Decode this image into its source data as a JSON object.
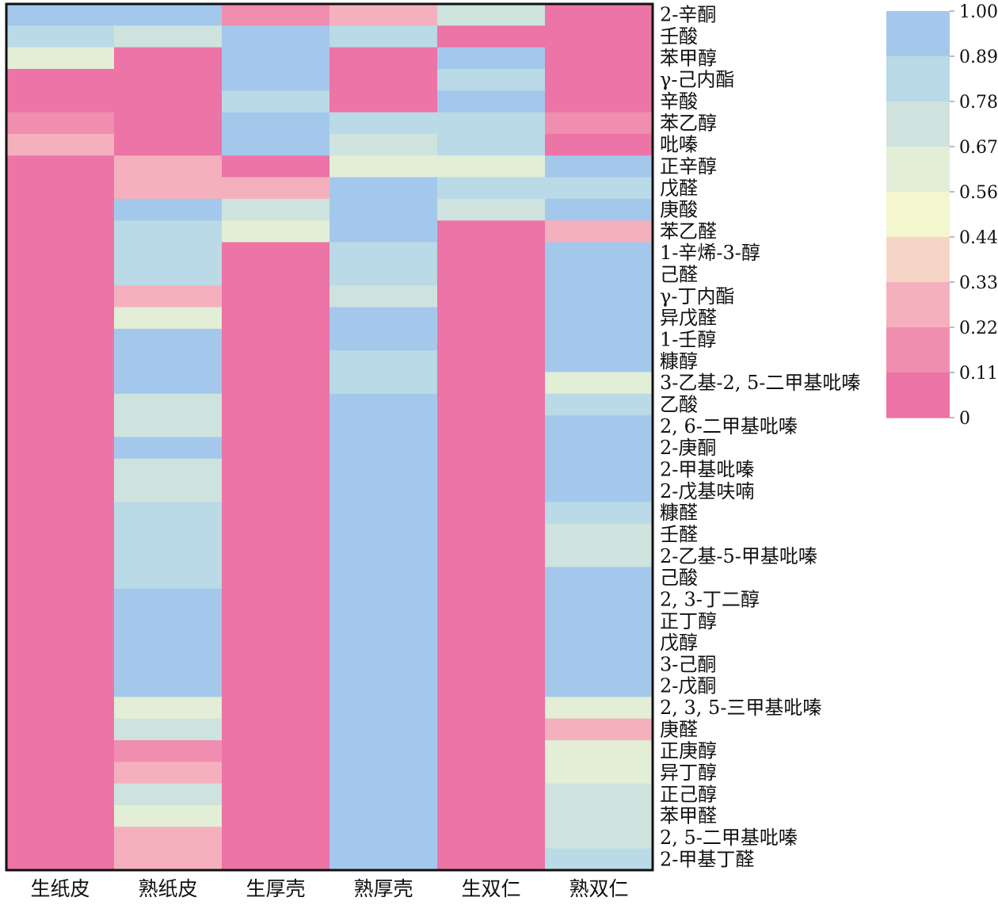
{
  "chart_data": {
    "type": "heatmap",
    "columns": [
      "生纸皮",
      "熟纸皮",
      "生厚壳",
      "熟厚壳",
      "生双仁",
      "熟双仁"
    ],
    "rows": [
      "2-辛酮",
      "壬酸",
      "苯甲醇",
      "γ-己内酯",
      "辛酸",
      "苯乙醇",
      "吡嗪",
      "正辛醇",
      "戊醛",
      "庚酸",
      "苯乙醛",
      "1-辛烯-3-醇",
      "己醛",
      "γ-丁内酯",
      "异戊醛",
      "1-壬醇",
      "糠醇",
      "3-乙基-2, 5-二甲基吡嗪",
      "乙酸",
      "2, 6-二甲基吡嗪",
      "2-庚酮",
      "2-甲基吡嗪",
      "2-戊基呋喃",
      "糠醛",
      "壬醛",
      "2-乙基-5-甲基吡嗪",
      "己酸",
      "2, 3-丁二醇",
      "正丁醇",
      "戊醇",
      "3-己酮",
      "2-戊酮",
      "2, 3, 5-三甲基吡嗪",
      "庚醛",
      "正庚醇",
      "异丁醇",
      "正己醇",
      "苯甲醛",
      "2, 5-二甲基吡嗪",
      "2-甲基丁醛"
    ],
    "values": [
      [
        1.0,
        0.89,
        0.22,
        0.33,
        0.67,
        0.0
      ],
      [
        0.78,
        0.67,
        1.0,
        0.78,
        0.11,
        0.0
      ],
      [
        0.56,
        0.0,
        1.0,
        0.11,
        1.0,
        0.0
      ],
      [
        0.0,
        0.0,
        1.0,
        0.0,
        0.78,
        0.0
      ],
      [
        0.0,
        0.0,
        0.78,
        0.0,
        1.0,
        0.0
      ],
      [
        0.22,
        0.0,
        1.0,
        0.78,
        0.78,
        0.22
      ],
      [
        0.33,
        0.11,
        1.0,
        0.67,
        0.78,
        0.0
      ],
      [
        0.0,
        0.33,
        0.11,
        0.56,
        0.56,
        1.0
      ],
      [
        0.0,
        0.33,
        0.33,
        1.0,
        0.78,
        0.78
      ],
      [
        0.0,
        1.0,
        0.67,
        0.89,
        0.67,
        0.89
      ],
      [
        0.11,
        0.78,
        0.56,
        1.0,
        0.0,
        0.33
      ],
      [
        0.0,
        0.78,
        0.0,
        0.78,
        0.0,
        1.0
      ],
      [
        0.0,
        0.78,
        0.0,
        0.78,
        0.0,
        1.0
      ],
      [
        0.0,
        0.33,
        0.0,
        0.67,
        0.0,
        1.0
      ],
      [
        0.0,
        0.56,
        0.0,
        0.89,
        0.0,
        1.0
      ],
      [
        0.0,
        1.0,
        0.0,
        1.0,
        0.0,
        1.0
      ],
      [
        0.0,
        1.0,
        0.0,
        0.78,
        0.0,
        0.89
      ],
      [
        0.0,
        1.0,
        0.0,
        0.78,
        0.0,
        0.56
      ],
      [
        0.0,
        0.67,
        0.0,
        1.0,
        0.0,
        0.78
      ],
      [
        0.0,
        0.67,
        0.0,
        1.0,
        0.0,
        0.89
      ],
      [
        0.0,
        0.89,
        0.0,
        1.0,
        0.0,
        1.0
      ],
      [
        0.0,
        0.67,
        0.0,
        1.0,
        0.0,
        1.0
      ],
      [
        0.0,
        0.67,
        0.0,
        1.0,
        0.0,
        1.0
      ],
      [
        0.0,
        0.78,
        0.0,
        1.0,
        0.0,
        0.78
      ],
      [
        0.0,
        0.78,
        0.0,
        1.0,
        0.0,
        0.67
      ],
      [
        0.0,
        0.78,
        0.0,
        1.0,
        0.0,
        0.67
      ],
      [
        0.0,
        0.78,
        0.0,
        1.0,
        0.0,
        0.89
      ],
      [
        0.0,
        0.89,
        0.0,
        1.0,
        0.0,
        0.89
      ],
      [
        0.0,
        0.89,
        0.0,
        1.0,
        0.0,
        0.89
      ],
      [
        0.0,
        0.89,
        0.0,
        1.0,
        0.0,
        0.89
      ],
      [
        0.0,
        0.89,
        0.0,
        1.0,
        0.0,
        0.89
      ],
      [
        0.0,
        0.89,
        0.0,
        1.0,
        0.0,
        0.89
      ],
      [
        0.0,
        0.56,
        0.0,
        1.0,
        0.0,
        0.56
      ],
      [
        0.0,
        0.67,
        0.0,
        1.0,
        0.0,
        0.33
      ],
      [
        0.0,
        0.22,
        0.0,
        1.0,
        0.0,
        0.56
      ],
      [
        0.0,
        0.33,
        0.0,
        1.0,
        0.0,
        0.56
      ],
      [
        0.0,
        0.67,
        0.0,
        1.0,
        0.0,
        0.67
      ],
      [
        0.0,
        0.56,
        0.0,
        1.0,
        0.0,
        0.67
      ],
      [
        0.0,
        0.33,
        0.0,
        1.0,
        0.0,
        0.67
      ],
      [
        0.0,
        0.33,
        0.0,
        1.0,
        0.0,
        0.78
      ]
    ],
    "colorbar": {
      "ticks": [
        "1.00",
        "0.89",
        "0.78",
        "0.67",
        "0.56",
        "0.44",
        "0.33",
        "0.22",
        "0.11",
        "0"
      ],
      "range": [
        0,
        1
      ],
      "colors": [
        "#a4c8ec",
        "#b9dae6",
        "#cfe3de",
        "#e2eed5",
        "#f4f6cd",
        "#f6d5c6",
        "#f5b0be",
        "#f08eb0",
        "#ec74a6"
      ]
    },
    "legend_position": "right"
  }
}
